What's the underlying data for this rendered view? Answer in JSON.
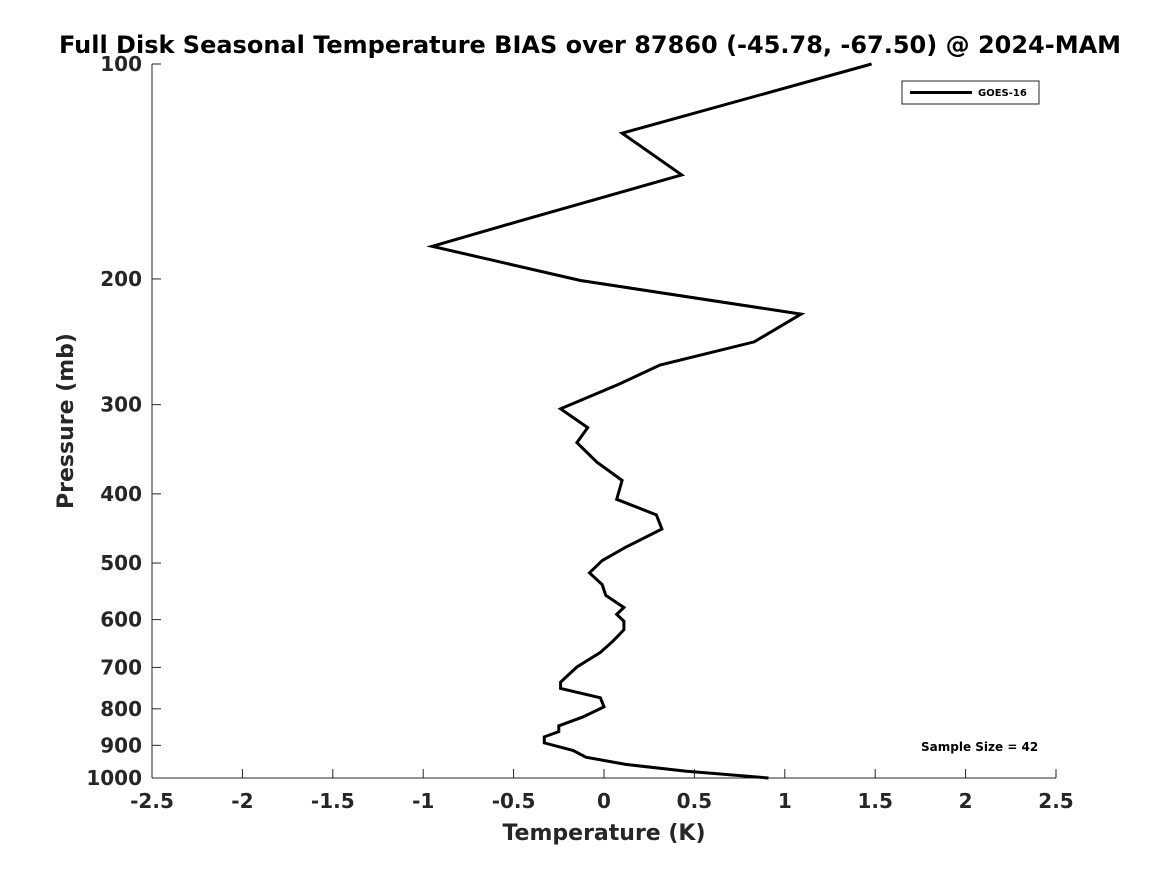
{
  "chart_data": {
    "type": "line",
    "title": "Full Disk Seasonal Temperature BIAS over 87860 (-45.78, -67.50) @ 2024-MAM",
    "xlabel": "Temperature (K)",
    "ylabel": "Pressure (mb)",
    "xlim": [
      -2.5,
      2.5
    ],
    "ylim": [
      100,
      1000
    ],
    "y_scale": "log",
    "y_reversed": true,
    "grid": false,
    "legend_position": "top-right",
    "x_ticks": [
      "-2.5",
      "-2",
      "-1.5",
      "-1",
      "-0.5",
      "0",
      "0.5",
      "1",
      "1.5",
      "2",
      "2.5"
    ],
    "y_ticks": [
      "100",
      "200",
      "300",
      "400",
      "500",
      "600",
      "700",
      "800",
      "900",
      "1000"
    ],
    "annotation": "Sample Size = 42",
    "series": [
      {
        "name": "GOES-16",
        "color": "#000000",
        "points": [
          {
            "x": 1.48,
            "y": 100
          },
          {
            "x": 0.1,
            "y": 125
          },
          {
            "x": 0.43,
            "y": 143
          },
          {
            "x": -0.47,
            "y": 166
          },
          {
            "x": -0.95,
            "y": 180
          },
          {
            "x": -0.13,
            "y": 201
          },
          {
            "x": 1.09,
            "y": 224
          },
          {
            "x": 0.83,
            "y": 245
          },
          {
            "x": 0.31,
            "y": 264
          },
          {
            "x": 0.08,
            "y": 281
          },
          {
            "x": -0.24,
            "y": 304
          },
          {
            "x": -0.09,
            "y": 323
          },
          {
            "x": -0.15,
            "y": 339
          },
          {
            "x": -0.04,
            "y": 361
          },
          {
            "x": 0.1,
            "y": 383
          },
          {
            "x": 0.07,
            "y": 407
          },
          {
            "x": 0.29,
            "y": 428
          },
          {
            "x": 0.32,
            "y": 448
          },
          {
            "x": 0.12,
            "y": 475
          },
          {
            "x": -0.01,
            "y": 496
          },
          {
            "x": -0.08,
            "y": 516
          },
          {
            "x": -0.01,
            "y": 536
          },
          {
            "x": 0.01,
            "y": 555
          },
          {
            "x": 0.11,
            "y": 577
          },
          {
            "x": 0.07,
            "y": 590
          },
          {
            "x": 0.11,
            "y": 603
          },
          {
            "x": 0.11,
            "y": 620
          },
          {
            "x": 0.05,
            "y": 643
          },
          {
            "x": -0.02,
            "y": 667
          },
          {
            "x": -0.15,
            "y": 699
          },
          {
            "x": -0.24,
            "y": 734
          },
          {
            "x": -0.24,
            "y": 749
          },
          {
            "x": -0.02,
            "y": 772
          },
          {
            "x": 0.0,
            "y": 795
          },
          {
            "x": -0.12,
            "y": 822
          },
          {
            "x": -0.25,
            "y": 845
          },
          {
            "x": -0.25,
            "y": 861
          },
          {
            "x": -0.33,
            "y": 876
          },
          {
            "x": -0.33,
            "y": 893
          },
          {
            "x": -0.17,
            "y": 915
          },
          {
            "x": -0.1,
            "y": 935
          },
          {
            "x": 0.12,
            "y": 957
          },
          {
            "x": 0.45,
            "y": 978
          },
          {
            "x": 0.91,
            "y": 1000
          }
        ]
      }
    ]
  }
}
